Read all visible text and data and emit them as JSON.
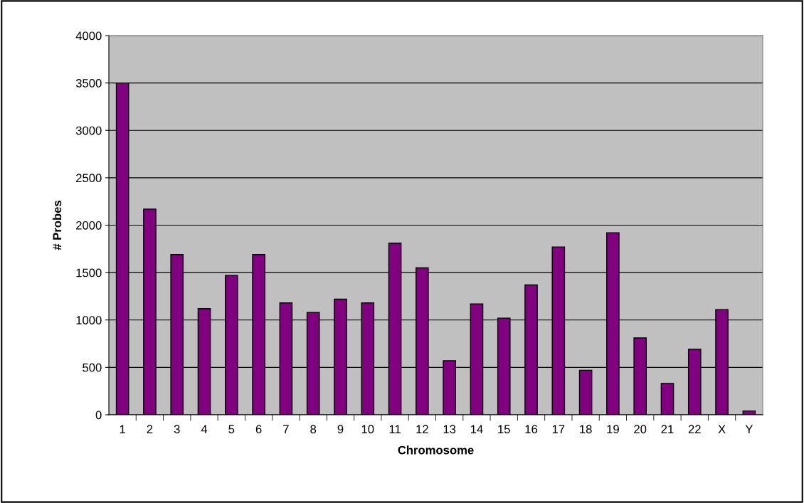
{
  "chart_data": {
    "type": "bar",
    "xlabel": "Chromosome",
    "ylabel": "# Probes",
    "categories": [
      "1",
      "2",
      "3",
      "4",
      "5",
      "6",
      "7",
      "8",
      "9",
      "10",
      "11",
      "12",
      "13",
      "14",
      "15",
      "16",
      "17",
      "18",
      "19",
      "20",
      "21",
      "22",
      "X",
      "Y"
    ],
    "values": [
      3500,
      2170,
      1690,
      1120,
      1470,
      1690,
      1180,
      1080,
      1220,
      1180,
      1810,
      1550,
      570,
      1170,
      1020,
      1370,
      1770,
      470,
      1920,
      810,
      330,
      690,
      1110,
      40
    ],
    "color": "#800080",
    "ylim": [
      0,
      4000
    ],
    "yticks": [
      0,
      500,
      1000,
      1500,
      2000,
      2500,
      3000,
      3500,
      4000
    ],
    "grid": "y"
  }
}
